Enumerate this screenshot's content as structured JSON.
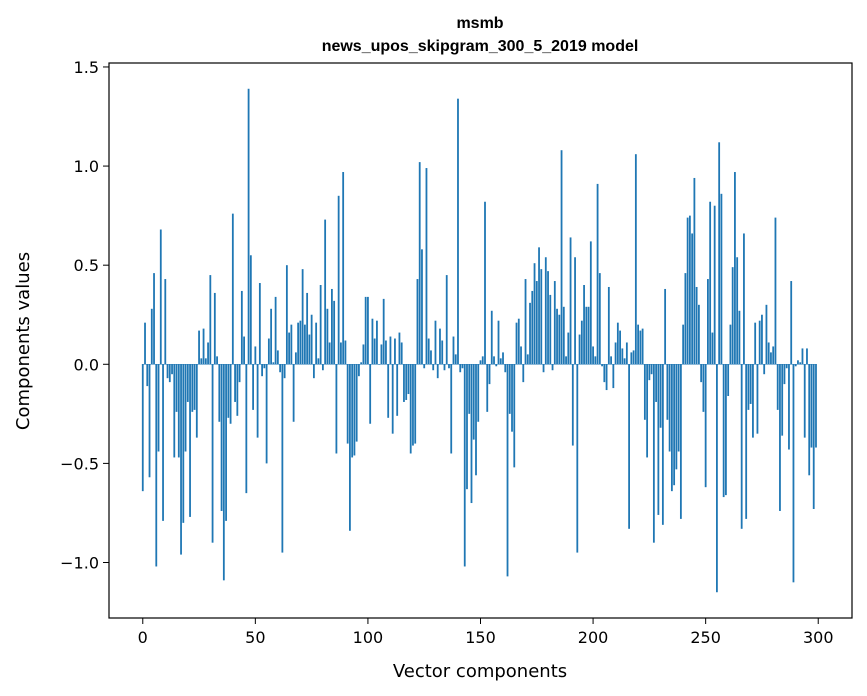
{
  "chart_data": {
    "type": "bar",
    "title": "msmb",
    "subtitle": "news_upos_skipgram_300_5_2019 model",
    "xlabel": "Vector components",
    "ylabel": "Components values",
    "xlim": [
      -15,
      315
    ],
    "ylim": [
      -1.28,
      1.52
    ],
    "xticks": [
      0,
      50,
      100,
      150,
      200,
      250,
      300
    ],
    "xtick_labels": [
      "0",
      "50",
      "100",
      "150",
      "200",
      "250",
      "300"
    ],
    "yticks": [
      -1.0,
      -0.5,
      0.0,
      0.5,
      1.0,
      1.5
    ],
    "ytick_labels": [
      "−1.0",
      "−0.5",
      "0.0",
      "0.5",
      "1.0",
      "1.5"
    ],
    "grid": false,
    "bar_color": "#1f77b4",
    "x": "0..299",
    "values": [
      -0.64,
      0.21,
      -0.11,
      -0.57,
      0.28,
      0.46,
      -1.02,
      -0.44,
      0.68,
      -0.79,
      0.43,
      -0.07,
      -0.09,
      -0.05,
      -0.47,
      -0.24,
      -0.47,
      -0.96,
      -0.8,
      -0.44,
      -0.19,
      -0.77,
      -0.24,
      -0.23,
      -0.37,
      0.17,
      0.03,
      0.18,
      0.03,
      0.11,
      0.45,
      -0.9,
      0.36,
      0.04,
      -0.29,
      -0.74,
      -1.09,
      -0.79,
      -0.27,
      -0.3,
      0.76,
      -0.19,
      -0.26,
      -0.09,
      0.37,
      0.14,
      -0.65,
      1.39,
      0.55,
      -0.23,
      0.09,
      -0.37,
      0.41,
      -0.06,
      -0.02,
      -0.5,
      0.13,
      0.28,
      0.01,
      0.34,
      0.07,
      -0.04,
      -0.95,
      -0.07,
      0.5,
      0.16,
      0.2,
      -0.29,
      0.06,
      0.21,
      0.22,
      0.48,
      0.2,
      0.36,
      0.15,
      0.25,
      -0.07,
      0.21,
      0.03,
      0.4,
      -0.03,
      0.73,
      0.28,
      0.11,
      0.38,
      0.32,
      -0.45,
      0.85,
      0.11,
      0.97,
      0.12,
      -0.4,
      -0.84,
      -0.47,
      -0.46,
      -0.39,
      -0.06,
      0.01,
      0.1,
      0.34,
      0.34,
      -0.3,
      0.23,
      0.13,
      0.22,
      0.0,
      0.1,
      0.33,
      0.12,
      -0.27,
      0.14,
      -0.35,
      0.13,
      -0.26,
      0.16,
      0.11,
      -0.19,
      -0.18,
      -0.15,
      -0.45,
      -0.41,
      -0.4,
      0.43,
      1.02,
      0.58,
      -0.02,
      0.99,
      0.13,
      0.07,
      -0.03,
      0.22,
      -0.07,
      0.18,
      0.12,
      -0.03,
      0.45,
      -0.02,
      -0.45,
      0.14,
      0.05,
      1.34,
      -0.04,
      -0.02,
      -1.02,
      -0.63,
      -0.25,
      -0.7,
      -0.38,
      -0.56,
      -0.29,
      0.02,
      0.04,
      0.82,
      -0.24,
      -0.1,
      0.27,
      0.04,
      -0.01,
      0.22,
      0.03,
      0.06,
      -0.04,
      -1.07,
      -0.25,
      -0.34,
      -0.52,
      0.21,
      0.23,
      0.09,
      -0.09,
      0.43,
      0.05,
      0.31,
      0.37,
      0.51,
      0.42,
      0.59,
      0.48,
      -0.04,
      0.54,
      0.47,
      0.35,
      -0.03,
      0.42,
      0.28,
      0.25,
      1.08,
      0.29,
      0.04,
      0.16,
      0.64,
      -0.41,
      0.54,
      -0.95,
      0.15,
      0.22,
      0.4,
      0.29,
      0.29,
      0.62,
      0.09,
      0.04,
      0.91,
      0.46,
      -0.01,
      -0.09,
      -0.13,
      0.39,
      0.04,
      -0.12,
      0.11,
      0.21,
      0.17,
      0.08,
      0.03,
      0.11,
      -0.83,
      0.06,
      0.07,
      1.06,
      0.2,
      0.17,
      0.18,
      -0.28,
      -0.47,
      -0.08,
      -0.05,
      -0.9,
      -0.19,
      -0.76,
      -0.32,
      -0.81,
      0.38,
      -0.28,
      -0.44,
      -0.64,
      -0.61,
      -0.53,
      -0.44,
      -0.78,
      0.2,
      0.46,
      0.74,
      0.75,
      0.66,
      0.94,
      0.39,
      0.3,
      -0.09,
      -0.24,
      -0.62,
      0.43,
      0.82,
      0.16,
      0.8,
      -1.15,
      1.12,
      0.86,
      -0.67,
      -0.66,
      -0.16,
      0.2,
      0.49,
      0.97,
      0.54,
      0.27,
      -0.83,
      0.66,
      -0.78,
      -0.23,
      -0.2,
      -0.37,
      0.21,
      -0.35,
      0.22,
      0.25,
      -0.05,
      0.3,
      0.11,
      0.06,
      0.09,
      0.74,
      -0.23,
      -0.74,
      -0.36,
      -0.1,
      -0.02,
      -0.43,
      0.42,
      -1.1,
      -0.01,
      0.02,
      0.01,
      0.08,
      -0.37,
      0.08,
      -0.56,
      -0.42,
      -0.73,
      -0.42
    ]
  }
}
